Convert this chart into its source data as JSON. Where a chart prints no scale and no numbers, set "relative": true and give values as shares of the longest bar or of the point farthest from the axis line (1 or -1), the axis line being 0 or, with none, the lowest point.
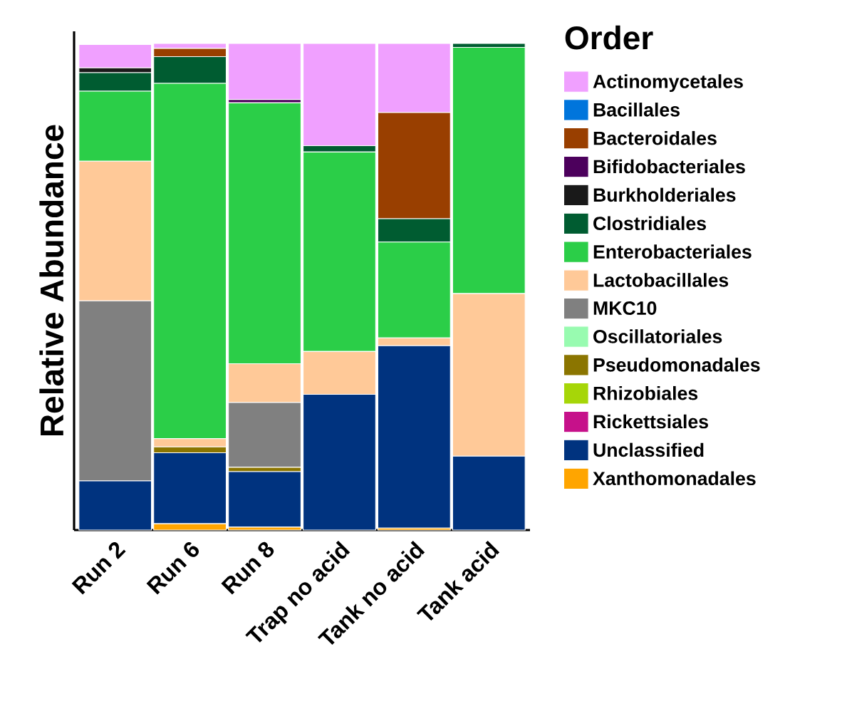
{
  "chart_data": {
    "type": "bar",
    "stacked": true,
    "relative": true,
    "ylabel": "Relative Abundance",
    "legend_title": "Order",
    "legend": "right",
    "categories": [
      "Run 2",
      "Run 6",
      "Run 8",
      "Trap no acid",
      "Tank no acid",
      "Tank acid"
    ],
    "series": [
      {
        "name": "Xanthomonadales",
        "color": "#ffa500",
        "values": [
          0,
          0.013,
          0.006,
          0,
          0.004,
          0
        ]
      },
      {
        "name": "Unclassified",
        "color": "#00337f",
        "values": [
          0.101,
          0.146,
          0.114,
          0.279,
          0.375,
          0.152
        ]
      },
      {
        "name": "Rickettsiales",
        "color": "#c6118a",
        "values": [
          0,
          0,
          0,
          0,
          0,
          0
        ]
      },
      {
        "name": "Rhizobiales",
        "color": "#a6d608",
        "values": [
          0,
          0,
          0,
          0,
          0,
          0
        ]
      },
      {
        "name": "Pseudomonadales",
        "color": "#8b7500",
        "values": [
          null,
          0.012,
          0.009,
          0,
          0,
          0
        ]
      },
      {
        "name": "Oscillatoriales",
        "color": "#98fbb0",
        "values": [
          0,
          0,
          0,
          0,
          0,
          0
        ]
      },
      {
        "name": "MKC10",
        "color": "#808080",
        "values": [
          0.37,
          0,
          0.133,
          0,
          0,
          0
        ]
      },
      {
        "name": "Lactobacillales",
        "color": "#ffc998",
        "values": [
          0.287,
          0.017,
          0.08,
          0.088,
          0.016,
          0.334
        ]
      },
      {
        "name": "Enterobacteriales",
        "color": "#2bce48",
        "values": [
          0.144,
          0.73,
          0.536,
          0.41,
          0.197,
          0.506
        ]
      },
      {
        "name": "Clostridiales",
        "color": "#005c31",
        "values": [
          0.038,
          0.055,
          0,
          0.013,
          0.048,
          0.008
        ]
      },
      {
        "name": "Burkholderiales",
        "color": "#191919",
        "values": [
          0.01,
          0,
          0,
          0,
          0,
          0
        ]
      },
      {
        "name": "Bifidobacteriales",
        "color": "#4c005c",
        "values": [
          0,
          0,
          0.007,
          0,
          0,
          0
        ]
      },
      {
        "name": "Bacteroidales",
        "color": "#993f00",
        "values": [
          0,
          0.017,
          0,
          0,
          0.218,
          0
        ]
      },
      {
        "name": "Bacillales",
        "color": "#0075dc",
        "values": [
          0,
          0,
          0,
          0,
          0,
          0
        ]
      },
      {
        "name": "Actinomycetales",
        "color": "#f0a0ff",
        "values": [
          0.048,
          0.01,
          0.115,
          0.21,
          0.142,
          0
        ]
      }
    ]
  }
}
